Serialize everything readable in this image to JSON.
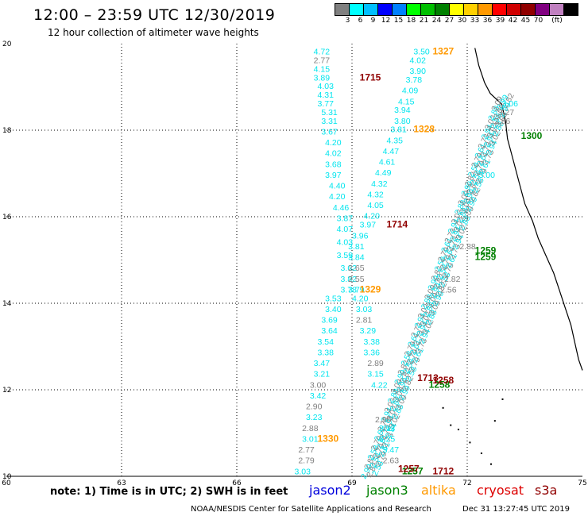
{
  "header": {
    "title": "12:00 – 23:59 UTC 12/30/2019",
    "subtitle": "12 hour collection of altimeter wave heights"
  },
  "colorbar": {
    "unit": "(ft)",
    "colors": [
      "#808080",
      "#00ffff",
      "#00bfff",
      "#0000ff",
      "#0080ff",
      "#00ff00",
      "#00c000",
      "#008000",
      "#ffff00",
      "#ffd000",
      "#ff9900",
      "#ff0000",
      "#d00000",
      "#900000",
      "#800080",
      "#c080c0",
      "#000000"
    ],
    "labels": [
      "3",
      "6",
      "9",
      "12",
      "15",
      "18",
      "21",
      "24",
      "27",
      "30",
      "33",
      "36",
      "39",
      "42",
      "45",
      "70"
    ]
  },
  "chart_data": {
    "type": "scatter",
    "x_axis": {
      "label": "",
      "range": [
        60,
        75
      ],
      "ticks": [
        "60",
        "63",
        "66",
        "69",
        "72",
        "75"
      ]
    },
    "y_axis": {
      "label": "",
      "range": [
        10,
        20
      ],
      "ticks": [
        "10",
        "12",
        "14",
        "16",
        "18",
        "20"
      ]
    },
    "grid": true,
    "text_points": [
      {
        "lon": 68.0,
        "lat": 19.75,
        "text": "4.72",
        "color": "#00e5ee"
      },
      {
        "lon": 68.0,
        "lat": 19.55,
        "text": "2.77",
        "color": "#808080"
      },
      {
        "lon": 68.0,
        "lat": 19.35,
        "text": "4.15",
        "color": "#00e5ee"
      },
      {
        "lon": 68.0,
        "lat": 19.15,
        "text": "3.89",
        "color": "#00e5ee"
      },
      {
        "lon": 68.1,
        "lat": 18.95,
        "text": "4.03",
        "color": "#00e5ee"
      },
      {
        "lon": 68.1,
        "lat": 18.75,
        "text": "4.31",
        "color": "#00e5ee"
      },
      {
        "lon": 68.1,
        "lat": 18.55,
        "text": "3.77",
        "color": "#00e5ee"
      },
      {
        "lon": 68.2,
        "lat": 18.35,
        "text": "5.31",
        "color": "#00e5ee"
      },
      {
        "lon": 68.2,
        "lat": 18.15,
        "text": "3.31",
        "color": "#00e5ee"
      },
      {
        "lon": 68.2,
        "lat": 17.9,
        "text": "3.67",
        "color": "#00e5ee"
      },
      {
        "lon": 68.3,
        "lat": 17.65,
        "text": "4.20",
        "color": "#00e5ee"
      },
      {
        "lon": 68.3,
        "lat": 17.4,
        "text": "4.02",
        "color": "#00e5ee"
      },
      {
        "lon": 68.3,
        "lat": 17.15,
        "text": "3.68",
        "color": "#00e5ee"
      },
      {
        "lon": 68.3,
        "lat": 16.9,
        "text": "3.97",
        "color": "#00e5ee"
      },
      {
        "lon": 68.4,
        "lat": 16.65,
        "text": "4.40",
        "color": "#00e5ee"
      },
      {
        "lon": 68.4,
        "lat": 16.4,
        "text": "4.20",
        "color": "#00e5ee"
      },
      {
        "lon": 68.5,
        "lat": 16.15,
        "text": "4.46",
        "color": "#00e5ee"
      },
      {
        "lon": 68.6,
        "lat": 15.9,
        "text": "3.87",
        "color": "#00e5ee"
      },
      {
        "lon": 68.6,
        "lat": 15.65,
        "text": "4.07",
        "color": "#00e5ee"
      },
      {
        "lon": 68.6,
        "lat": 15.35,
        "text": "4.03",
        "color": "#00e5ee"
      },
      {
        "lon": 68.6,
        "lat": 15.05,
        "text": "3.59",
        "color": "#00e5ee"
      },
      {
        "lon": 68.7,
        "lat": 14.75,
        "text": "3.62",
        "color": "#00e5ee"
      },
      {
        "lon": 68.7,
        "lat": 14.5,
        "text": "3.82",
        "color": "#00e5ee"
      },
      {
        "lon": 68.7,
        "lat": 14.25,
        "text": "3.78",
        "color": "#00e5ee"
      },
      {
        "lon": 68.3,
        "lat": 14.05,
        "text": "3.53",
        "color": "#00e5ee"
      },
      {
        "lon": 68.3,
        "lat": 13.8,
        "text": "3.40",
        "color": "#00e5ee"
      },
      {
        "lon": 68.2,
        "lat": 13.55,
        "text": "3.69",
        "color": "#00e5ee"
      },
      {
        "lon": 68.2,
        "lat": 13.3,
        "text": "3.64",
        "color": "#00e5ee"
      },
      {
        "lon": 68.1,
        "lat": 13.05,
        "text": "3.54",
        "color": "#00e5ee"
      },
      {
        "lon": 68.1,
        "lat": 12.8,
        "text": "3.38",
        "color": "#00e5ee"
      },
      {
        "lon": 68.0,
        "lat": 12.55,
        "text": "3.47",
        "color": "#00e5ee"
      },
      {
        "lon": 68.0,
        "lat": 12.3,
        "text": "3.21",
        "color": "#00e5ee"
      },
      {
        "lon": 67.9,
        "lat": 12.05,
        "text": "3.00",
        "color": "#808080"
      },
      {
        "lon": 67.9,
        "lat": 11.8,
        "text": "3.42",
        "color": "#00e5ee"
      },
      {
        "lon": 67.8,
        "lat": 11.55,
        "text": "2.90",
        "color": "#808080"
      },
      {
        "lon": 67.8,
        "lat": 11.3,
        "text": "3.23",
        "color": "#00e5ee"
      },
      {
        "lon": 67.7,
        "lat": 11.05,
        "text": "2.88",
        "color": "#808080"
      },
      {
        "lon": 67.7,
        "lat": 10.8,
        "text": "3.01",
        "color": "#00e5ee"
      },
      {
        "lon": 67.6,
        "lat": 10.55,
        "text": "2.77",
        "color": "#808080"
      },
      {
        "lon": 67.6,
        "lat": 10.3,
        "text": "2.79",
        "color": "#808080"
      },
      {
        "lon": 67.5,
        "lat": 10.05,
        "text": "3.03",
        "color": "#00e5ee"
      },
      {
        "lon": 70.6,
        "lat": 19.75,
        "text": "3.50",
        "color": "#00e5ee"
      },
      {
        "lon": 70.5,
        "lat": 19.55,
        "text": "4.02",
        "color": "#00e5ee"
      },
      {
        "lon": 70.5,
        "lat": 19.3,
        "text": "3.90",
        "color": "#00e5ee"
      },
      {
        "lon": 70.4,
        "lat": 19.1,
        "text": "3.78",
        "color": "#00e5ee"
      },
      {
        "lon": 70.3,
        "lat": 18.85,
        "text": "4.09",
        "color": "#00e5ee"
      },
      {
        "lon": 70.2,
        "lat": 18.6,
        "text": "4.15",
        "color": "#00e5ee"
      },
      {
        "lon": 70.1,
        "lat": 18.4,
        "text": "3.94",
        "color": "#00e5ee"
      },
      {
        "lon": 70.1,
        "lat": 18.15,
        "text": "3.80",
        "color": "#00e5ee"
      },
      {
        "lon": 70.0,
        "lat": 17.95,
        "text": "3.81",
        "color": "#00e5ee"
      },
      {
        "lon": 69.9,
        "lat": 17.7,
        "text": "4.35",
        "color": "#00e5ee"
      },
      {
        "lon": 69.8,
        "lat": 17.45,
        "text": "4.47",
        "color": "#00e5ee"
      },
      {
        "lon": 69.7,
        "lat": 17.2,
        "text": "4.61",
        "color": "#00e5ee"
      },
      {
        "lon": 69.6,
        "lat": 16.95,
        "text": "4.49",
        "color": "#00e5ee"
      },
      {
        "lon": 69.5,
        "lat": 16.7,
        "text": "4.32",
        "color": "#00e5ee"
      },
      {
        "lon": 69.4,
        "lat": 16.45,
        "text": "4.32",
        "color": "#00e5ee"
      },
      {
        "lon": 69.4,
        "lat": 16.2,
        "text": "4.05",
        "color": "#00e5ee"
      },
      {
        "lon": 69.3,
        "lat": 15.95,
        "text": "4.20",
        "color": "#00e5ee"
      },
      {
        "lon": 69.2,
        "lat": 15.75,
        "text": "3.97",
        "color": "#00e5ee"
      },
      {
        "lon": 69.0,
        "lat": 15.5,
        "text": "3.96",
        "color": "#00e5ee"
      },
      {
        "lon": 68.9,
        "lat": 15.25,
        "text": "3.81",
        "color": "#00e5ee"
      },
      {
        "lon": 68.9,
        "lat": 15.0,
        "text": "3.84",
        "color": "#00e5ee"
      },
      {
        "lon": 68.9,
        "lat": 14.75,
        "text": "2.65",
        "color": "#808080"
      },
      {
        "lon": 68.9,
        "lat": 14.5,
        "text": "2.55",
        "color": "#808080"
      },
      {
        "lon": 68.9,
        "lat": 14.25,
        "text": "3.79",
        "color": "#00e5ee"
      },
      {
        "lon": 69.0,
        "lat": 14.05,
        "text": "4.20",
        "color": "#00e5ee"
      },
      {
        "lon": 69.1,
        "lat": 13.8,
        "text": "3.03",
        "color": "#00e5ee"
      },
      {
        "lon": 69.1,
        "lat": 13.55,
        "text": "2.81",
        "color": "#808080"
      },
      {
        "lon": 69.2,
        "lat": 13.3,
        "text": "3.29",
        "color": "#00e5ee"
      },
      {
        "lon": 69.3,
        "lat": 13.05,
        "text": "3.38",
        "color": "#00e5ee"
      },
      {
        "lon": 69.3,
        "lat": 12.8,
        "text": "3.36",
        "color": "#00e5ee"
      },
      {
        "lon": 69.4,
        "lat": 12.55,
        "text": "2.89",
        "color": "#808080"
      },
      {
        "lon": 69.4,
        "lat": 12.3,
        "text": "3.15",
        "color": "#00e5ee"
      },
      {
        "lon": 69.5,
        "lat": 12.05,
        "text": "4.22",
        "color": "#00e5ee"
      },
      {
        "lon": 69.6,
        "lat": 11.25,
        "text": "2.96",
        "color": "#808080"
      },
      {
        "lon": 69.7,
        "lat": 11.05,
        "text": "3.13",
        "color": "#00e5ee"
      },
      {
        "lon": 69.7,
        "lat": 10.8,
        "text": "3.25",
        "color": "#00e5ee"
      },
      {
        "lon": 69.8,
        "lat": 10.55,
        "text": "3.47",
        "color": "#00e5ee"
      },
      {
        "lon": 69.8,
        "lat": 10.3,
        "text": "2.63",
        "color": "#808080"
      },
      {
        "lon": 72.9,
        "lat": 18.55,
        "text": "3.06",
        "color": "#00e5ee"
      },
      {
        "lon": 72.8,
        "lat": 18.35,
        "text": "3.27",
        "color": "#808080"
      },
      {
        "lon": 72.7,
        "lat": 18.15,
        "text": "2.86",
        "color": "#808080"
      },
      {
        "lon": 72.3,
        "lat": 16.9,
        "text": "3.00",
        "color": "#00e5ee"
      },
      {
        "lon": 71.8,
        "lat": 15.25,
        "text": "2.88",
        "color": "#808080"
      },
      {
        "lon": 71.4,
        "lat": 14.5,
        "text": "2.82",
        "color": "#808080"
      },
      {
        "lon": 71.3,
        "lat": 14.25,
        "text": "2.56",
        "color": "#808080"
      }
    ],
    "pass_labels": [
      {
        "lon": 71.1,
        "lat": 19.75,
        "text": "1327",
        "color": "#ff9900"
      },
      {
        "lon": 69.2,
        "lat": 19.15,
        "text": "1715",
        "color": "#900000"
      },
      {
        "lon": 70.6,
        "lat": 17.95,
        "text": "1328",
        "color": "#ff9900"
      },
      {
        "lon": 73.4,
        "lat": 17.8,
        "text": "1300",
        "color": "#008000"
      },
      {
        "lon": 69.9,
        "lat": 15.75,
        "text": "1714",
        "color": "#900000"
      },
      {
        "lon": 72.2,
        "lat": 15.15,
        "text": "1259",
        "color": "#008000"
      },
      {
        "lon": 72.2,
        "lat": 15.0,
        "text": "1259",
        "color": "#008000"
      },
      {
        "lon": 69.2,
        "lat": 14.25,
        "text": "1329",
        "color": "#ff9900"
      },
      {
        "lon": 70.7,
        "lat": 12.2,
        "text": "1713",
        "color": "#900000"
      },
      {
        "lon": 71.0,
        "lat": 12.05,
        "text": "1258",
        "color": "#008000"
      },
      {
        "lon": 71.1,
        "lat": 12.15,
        "text": "1258",
        "color": "#900000"
      },
      {
        "lon": 68.1,
        "lat": 10.8,
        "text": "1330",
        "color": "#ff9900"
      },
      {
        "lon": 70.3,
        "lat": 10.05,
        "text": "1257",
        "color": "#008000"
      },
      {
        "lon": 70.2,
        "lat": 10.1,
        "text": "1257",
        "color": "#900000"
      },
      {
        "lon": 71.1,
        "lat": 10.05,
        "text": "1712",
        "color": "#900000"
      }
    ],
    "dense_track": {
      "from": [
        69.55,
        10.0
      ],
      "to": [
        72.95,
        18.5
      ],
      "sample_values": [
        "2.99",
        "2.82",
        "2.58",
        "2.79",
        "2.61",
        "2.73",
        "2.94",
        "3.02",
        "2.88",
        "3.09"
      ],
      "colors": [
        "#00e5ee",
        "#808080"
      ]
    },
    "coastline": [
      [
        72.2,
        19.9
      ],
      [
        72.3,
        19.5
      ],
      [
        72.45,
        19.1
      ],
      [
        72.6,
        18.85
      ],
      [
        72.9,
        18.6
      ],
      [
        73.0,
        18.2
      ],
      [
        73.05,
        17.8
      ],
      [
        73.2,
        17.3
      ],
      [
        73.35,
        16.8
      ],
      [
        73.5,
        16.3
      ],
      [
        73.7,
        15.9
      ],
      [
        73.85,
        15.5
      ],
      [
        74.05,
        15.1
      ],
      [
        74.25,
        14.7
      ],
      [
        74.4,
        14.3
      ],
      [
        74.55,
        13.9
      ],
      [
        74.7,
        13.5
      ],
      [
        74.8,
        13.1
      ],
      [
        74.9,
        12.7
      ],
      [
        75.0,
        12.45
      ]
    ]
  },
  "footer": {
    "note": "note: 1) Time is in UTC; 2) SWH is in feet",
    "legend": [
      {
        "label": "jason2",
        "color": "#0000dd"
      },
      {
        "label": "jason3",
        "color": "#008000"
      },
      {
        "label": "altika",
        "color": "#ff9900"
      },
      {
        "label": "cryosat",
        "color": "#dd0000"
      },
      {
        "label": "s3a",
        "color": "#900000"
      }
    ],
    "credit": "NOAA/NESDIS Center for Satellite Applications and Research",
    "timestamp": "Dec 31 13:27:45 UTC 2019"
  }
}
